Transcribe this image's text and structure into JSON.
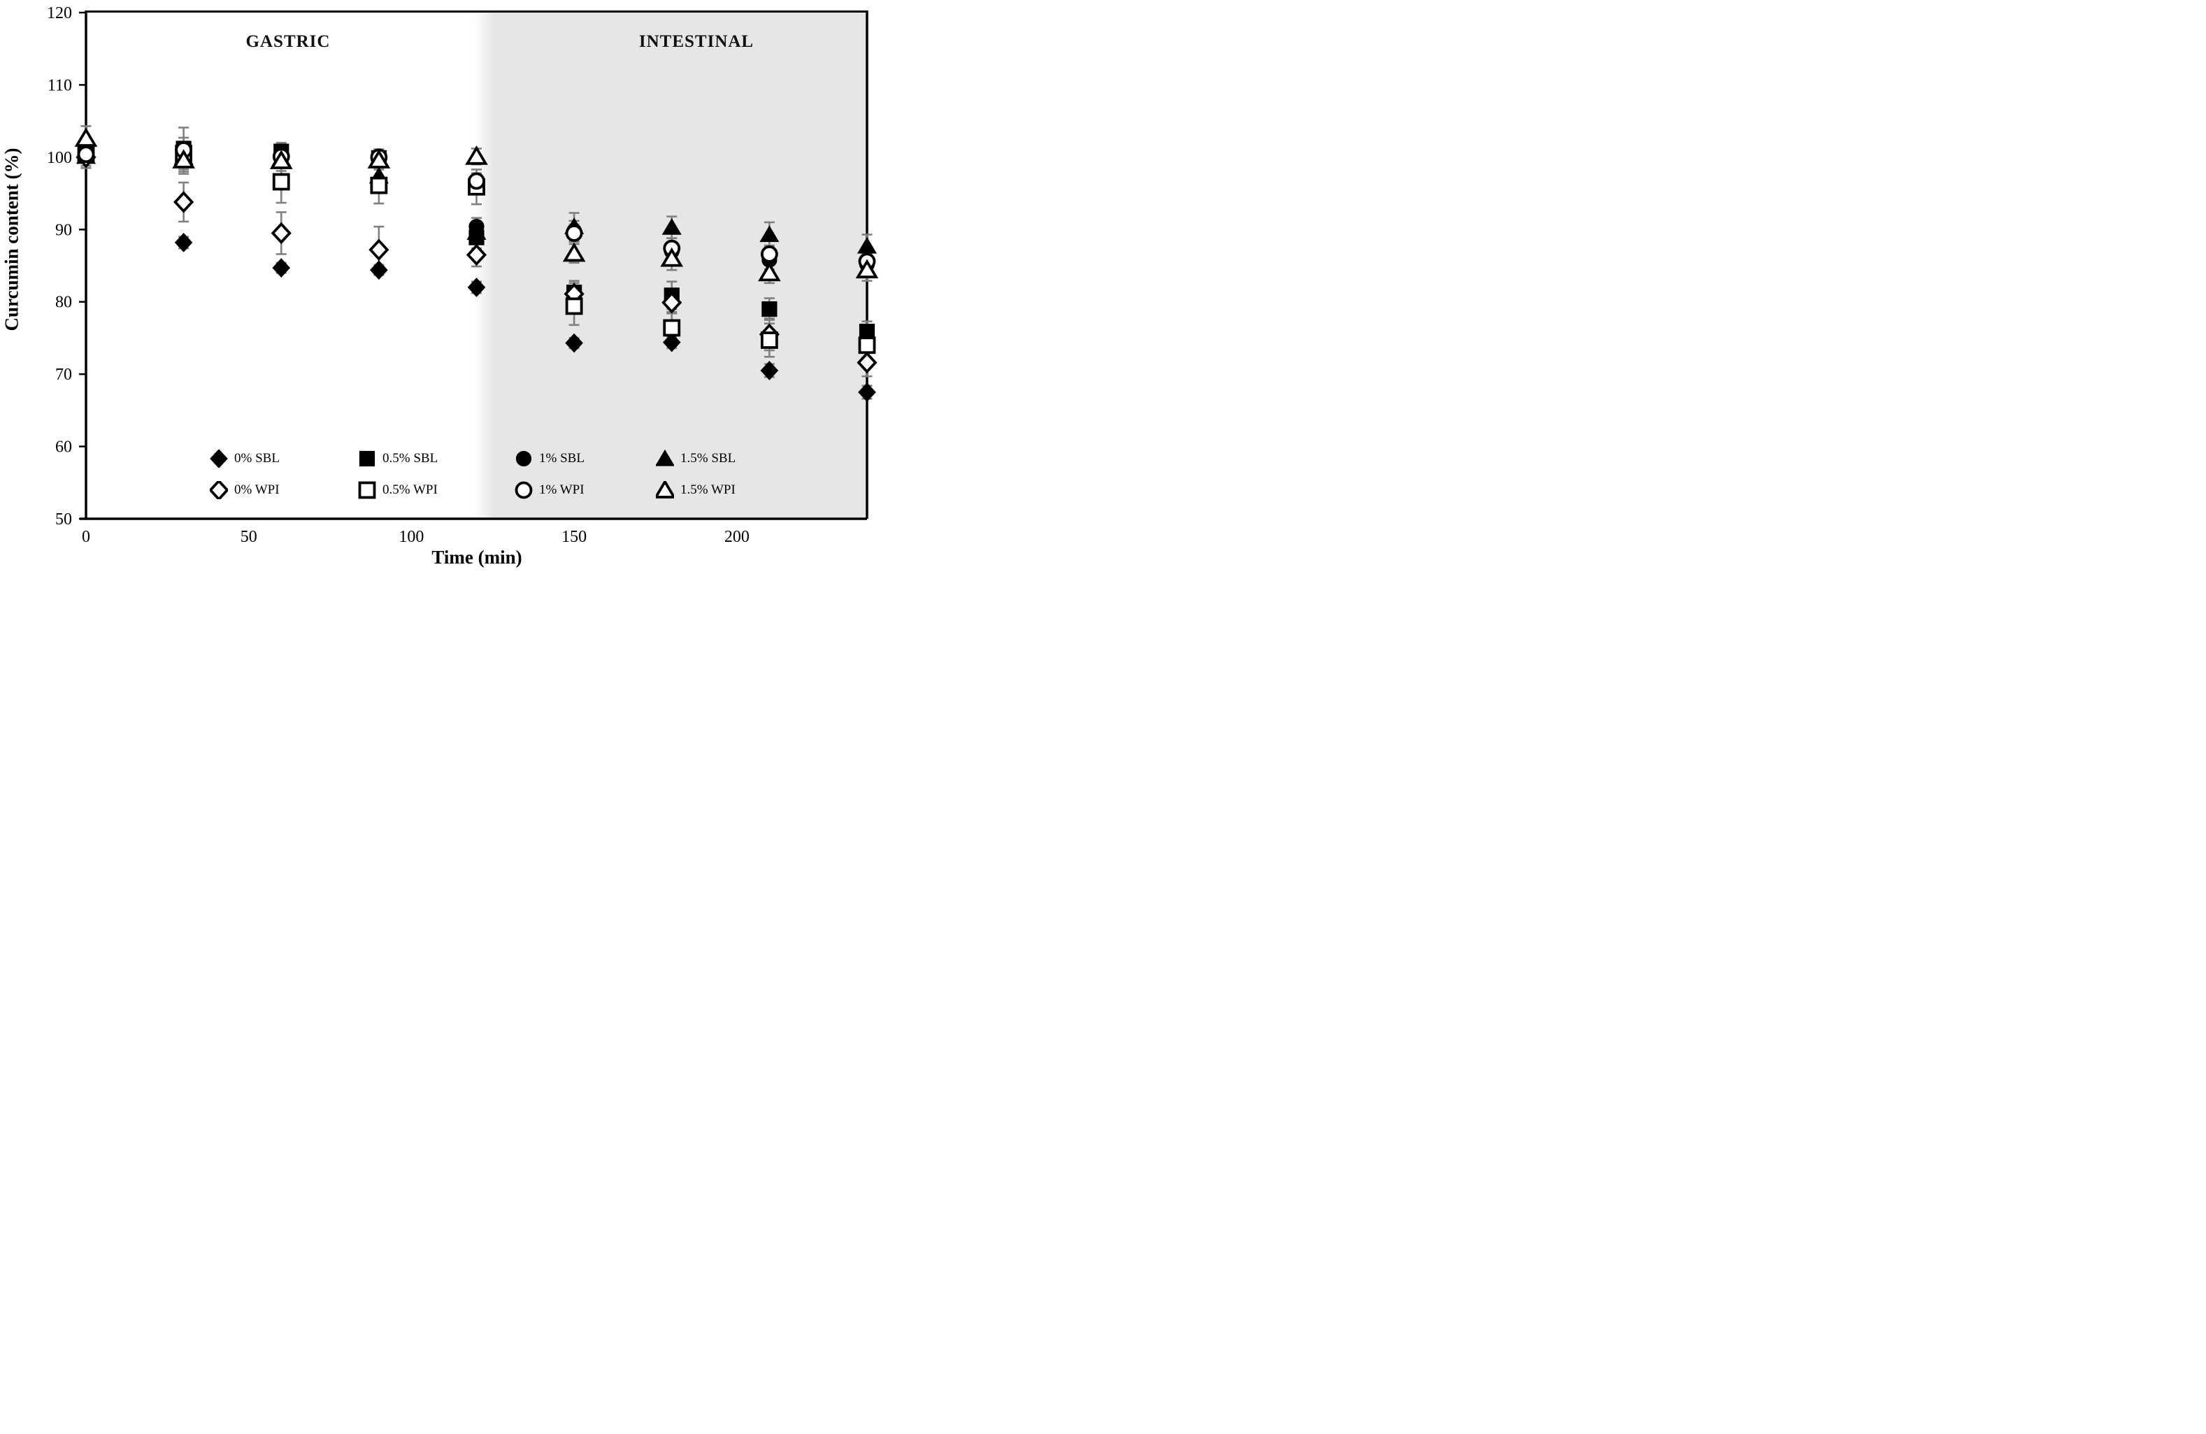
{
  "figure": {
    "y_axis_title": "Curcumin content (%)",
    "x_axis_title": "Time (min)",
    "region_labels": {
      "gastric": "GASTRIC",
      "intestinal": "INTESTINAL"
    }
  },
  "colors": {
    "marker": "#000000",
    "error_bar": "#808080",
    "intestinal_shade": "#e6e6e6",
    "background": "#ffffff"
  },
  "chart_data": {
    "type": "scatter",
    "x": [
      0,
      30,
      60,
      90,
      120,
      150,
      180,
      210,
      240
    ],
    "xlabel": "Time (min)",
    "ylabel": "Curcumin content (%)",
    "xlim": [
      0,
      240
    ],
    "ylim": [
      50,
      120
    ],
    "x_ticks": [
      0,
      50,
      100,
      150,
      200
    ],
    "y_ticks": [
      50,
      60,
      70,
      80,
      90,
      100,
      110,
      120
    ],
    "grid": false,
    "legend_position": "inside-bottom",
    "regions": [
      {
        "label": "GASTRIC",
        "start": 0,
        "end": 120,
        "shaded": false
      },
      {
        "label": "INTESTINAL",
        "start": 120,
        "end": 240,
        "shaded": true
      }
    ],
    "series": [
      {
        "name": "0% SBL",
        "marker": "diamond",
        "filled": true,
        "values": [
          100.0,
          88.2,
          84.7,
          84.4,
          82.0,
          74.3,
          74.4,
          70.5,
          67.5
        ],
        "errors": [
          0.8,
          0.8,
          0.7,
          0.7,
          0.8,
          0.7,
          0.8,
          0.9,
          0.9
        ]
      },
      {
        "name": "0.5% SBL",
        "marker": "square",
        "filled": true,
        "values": [
          100.2,
          101.2,
          100.8,
          99.9,
          88.9,
          81.3,
          80.9,
          79.0,
          75.9
        ],
        "errors": [
          0.8,
          2.9,
          1.2,
          1.2,
          1.5,
          1.6,
          1.9,
          1.5,
          1.4
        ]
      },
      {
        "name": "1% SBL",
        "marker": "circle",
        "filled": true,
        "values": [
          100.1,
          100.6,
          100.3,
          100.0,
          90.4,
          89.8,
          87.0,
          85.8,
          85.2
        ],
        "errors": [
          0.9,
          1.5,
          1.0,
          1.0,
          1.2,
          1.4,
          1.3,
          1.3,
          1.2
        ]
      },
      {
        "name": "1.5% SBL",
        "marker": "triangle",
        "filled": true,
        "values": [
          100.1,
          100.0,
          99.8,
          97.4,
          89.6,
          90.4,
          90.3,
          89.3,
          87.7
        ],
        "errors": [
          1.6,
          2.0,
          1.3,
          1.2,
          1.1,
          1.9,
          1.5,
          1.7,
          1.6
        ]
      },
      {
        "name": "0% WPI",
        "marker": "diamond",
        "filled": false,
        "values": [
          100.0,
          93.8,
          89.5,
          87.2,
          86.5,
          81.1,
          79.9,
          75.5,
          71.6
        ],
        "errors": [
          1.2,
          2.7,
          2.9,
          3.2,
          1.6,
          1.5,
          1.3,
          2.2,
          1.9
        ]
      },
      {
        "name": "0.5% WPI",
        "marker": "square",
        "filled": false,
        "values": [
          100.4,
          100.5,
          96.6,
          96.1,
          95.9,
          79.4,
          76.4,
          74.7,
          74.0
        ],
        "errors": [
          0.9,
          1.4,
          2.9,
          2.5,
          2.4,
          2.6,
          2.0,
          2.3,
          2.2
        ]
      },
      {
        "name": "1% WPI",
        "marker": "circle",
        "filled": false,
        "values": [
          100.4,
          101.0,
          100.1,
          100.0,
          96.7,
          89.5,
          87.4,
          86.6,
          85.6
        ],
        "errors": [
          1.0,
          1.7,
          1.1,
          1.0,
          1.1,
          1.2,
          1.4,
          1.2,
          1.1
        ]
      },
      {
        "name": "1.5% WPI",
        "marker": "triangle",
        "filled": false,
        "values": [
          102.6,
          99.6,
          99.5,
          99.6,
          100.1,
          86.7,
          86.0,
          84.0,
          84.4
        ],
        "errors": [
          1.7,
          1.9,
          1.4,
          1.3,
          1.1,
          1.3,
          1.6,
          1.4,
          1.5
        ]
      }
    ],
    "legend": [
      {
        "label": "0% SBL",
        "marker": "diamond",
        "filled": true,
        "row": 0,
        "col": 0
      },
      {
        "label": "0.5% SBL",
        "marker": "square",
        "filled": true,
        "row": 0,
        "col": 1
      },
      {
        "label": "1% SBL",
        "marker": "circle",
        "filled": true,
        "row": 0,
        "col": 2
      },
      {
        "label": "1.5% SBL",
        "marker": "triangle",
        "filled": true,
        "row": 0,
        "col": 3
      },
      {
        "label": "0% WPI",
        "marker": "diamond",
        "filled": false,
        "row": 1,
        "col": 0
      },
      {
        "label": "0.5% WPI",
        "marker": "square",
        "filled": false,
        "row": 1,
        "col": 1
      },
      {
        "label": "1% WPI",
        "marker": "circle",
        "filled": false,
        "row": 1,
        "col": 2
      },
      {
        "label": "1.5% WPI",
        "marker": "triangle",
        "filled": false,
        "row": 1,
        "col": 3
      }
    ]
  }
}
